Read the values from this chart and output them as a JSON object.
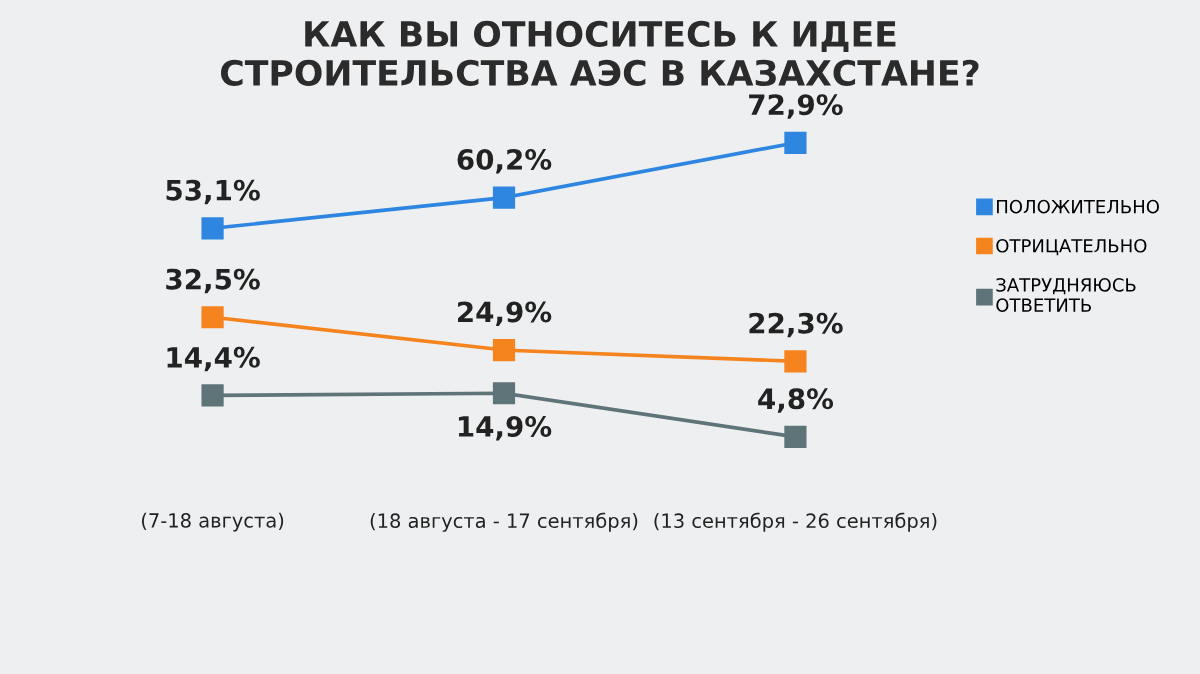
{
  "chart_data": {
    "type": "line",
    "title": "КАК ВЫ ОТНОСИТЕСЬ К ИДЕЕ\nСТРОИТЕЛЬСТВА АЭС В КАЗАХСТАНЕ?",
    "categories": [
      "(7-18 августа)",
      "(18 августа - 17 сентября)",
      "(13 сентября - 26 сентября)"
    ],
    "series": [
      {
        "name": "ПОЛОЖИТЕЛЬНО",
        "color": "#2f86e0",
        "values": [
          53.1,
          60.2,
          72.9
        ],
        "value_labels": [
          "53,1%",
          "60,2%",
          "72,9%"
        ]
      },
      {
        "name": "ОТРИЦАТЕЛЬНО",
        "color": "#f5841f",
        "values": [
          32.5,
          24.9,
          22.3
        ],
        "value_labels": [
          "32,5%",
          "24,9%",
          "22,3%"
        ]
      },
      {
        "name": "ЗАТРУДНЯЮСЬ\nОТВЕТИТЬ",
        "color": "#5f7479",
        "values": [
          14.4,
          14.9,
          4.8
        ],
        "value_labels": [
          "14,4%",
          "14,9%",
          "4,8%"
        ]
      }
    ],
    "marker": "square",
    "line_style": "solid",
    "legend": "right",
    "grid": false
  }
}
